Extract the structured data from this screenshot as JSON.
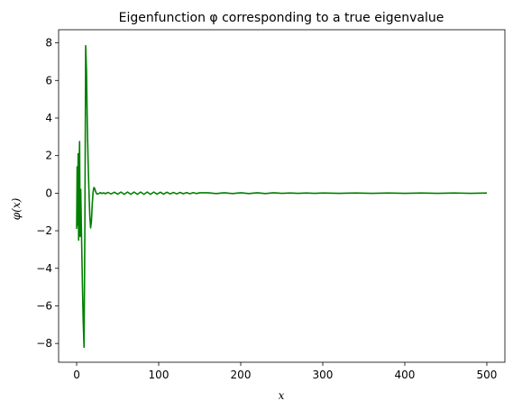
{
  "chart_data": {
    "type": "line",
    "title": "Eigenfunction φ corresponding to a true eigenvalue",
    "xlabel": "x",
    "ylabel": "φ(x)",
    "xlim": [
      -22,
      522
    ],
    "ylim": [
      -9,
      8.7
    ],
    "xticks": [
      0,
      100,
      200,
      300,
      400,
      500
    ],
    "yticks": [
      -8,
      -6,
      -4,
      -2,
      0,
      2,
      4,
      6,
      8
    ],
    "grid": false,
    "series": [
      {
        "color": "#008000",
        "x": [
          0,
          0.6,
          1.2,
          1.8,
          2.4,
          3,
          3.6,
          4.2,
          5,
          6,
          7,
          8,
          9,
          10,
          11,
          12,
          13,
          14,
          15,
          16,
          17,
          18,
          19,
          20,
          21,
          22,
          23,
          24,
          25,
          27,
          29,
          31,
          33,
          35,
          38,
          42,
          46,
          50,
          54,
          58,
          62,
          66,
          70,
          74,
          78,
          82,
          86,
          90,
          94,
          98,
          102,
          106,
          110,
          114,
          118,
          122,
          126,
          130,
          134,
          138,
          142,
          146,
          150,
          160,
          170,
          180,
          190,
          200,
          210,
          220,
          230,
          240,
          250,
          260,
          270,
          280,
          290,
          300,
          320,
          340,
          360,
          380,
          400,
          420,
          440,
          460,
          480,
          500
        ],
        "y": [
          -1.9,
          1.4,
          -1.7,
          2.1,
          -2.5,
          1.5,
          2.75,
          -2.3,
          0.2,
          -2.4,
          -4.8,
          -6.8,
          -8.2,
          -2.0,
          7.85,
          6.5,
          3.6,
          1.6,
          0.1,
          -1.2,
          -1.85,
          -1.5,
          -0.6,
          0.05,
          0.3,
          0.25,
          0.1,
          0.0,
          -0.05,
          -0.02,
          0.03,
          -0.02,
          0.02,
          -0.03,
          0.04,
          -0.04,
          0.05,
          -0.05,
          0.06,
          -0.06,
          0.06,
          -0.06,
          0.06,
          -0.06,
          0.06,
          -0.06,
          0.06,
          -0.06,
          0.06,
          -0.05,
          0.05,
          -0.05,
          0.05,
          -0.04,
          0.04,
          -0.04,
          0.04,
          -0.03,
          0.03,
          -0.03,
          0.03,
          -0.02,
          0.02,
          0.02,
          -0.02,
          0.02,
          -0.02,
          0.02,
          -0.02,
          0.02,
          -0.02,
          0.02,
          -0.01,
          0.01,
          -0.01,
          0.01,
          -0.01,
          0.01,
          -0.01,
          0.01,
          -0.01,
          0.01,
          -0.01,
          0.01,
          -0.01,
          0.01,
          -0.01,
          0.01
        ]
      }
    ]
  }
}
